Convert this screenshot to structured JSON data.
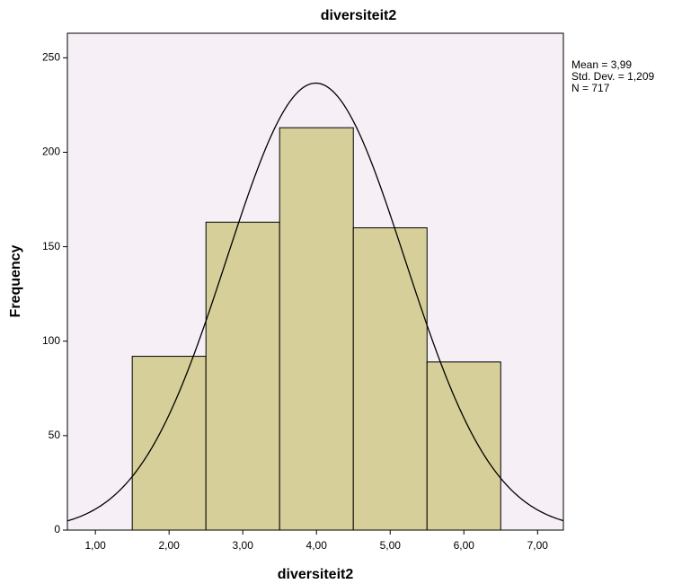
{
  "chart_data": {
    "type": "histogram",
    "title": "diversiteit2",
    "x_label": "diversiteit2",
    "y_label": "Frequency",
    "bins": [
      1.5,
      2.5,
      3.5,
      4.5,
      5.5,
      6.5
    ],
    "values": [
      92,
      163,
      213,
      160,
      89
    ],
    "color": "#d6cf99",
    "xlim": [
      0.62,
      7.35
    ],
    "xticks": [
      {
        "value": 1,
        "label": "1,00"
      },
      {
        "value": 2,
        "label": "2,00"
      },
      {
        "value": 3,
        "label": "3,00"
      },
      {
        "value": 4,
        "label": "4,00"
      },
      {
        "value": 5,
        "label": "5,00"
      },
      {
        "value": 6,
        "label": "6,00"
      },
      {
        "value": 7,
        "label": "7,00"
      }
    ],
    "ylim": [
      0,
      263
    ],
    "yticks": [
      0,
      50,
      100,
      150,
      200,
      250
    ],
    "stats": [
      {
        "value": 3.99,
        "label": "Mean = 3,99"
      },
      {
        "value": 1.209,
        "label": "Std. Dev. = 1,209"
      },
      {
        "value": 717,
        "label": "N = 717"
      }
    ]
  }
}
